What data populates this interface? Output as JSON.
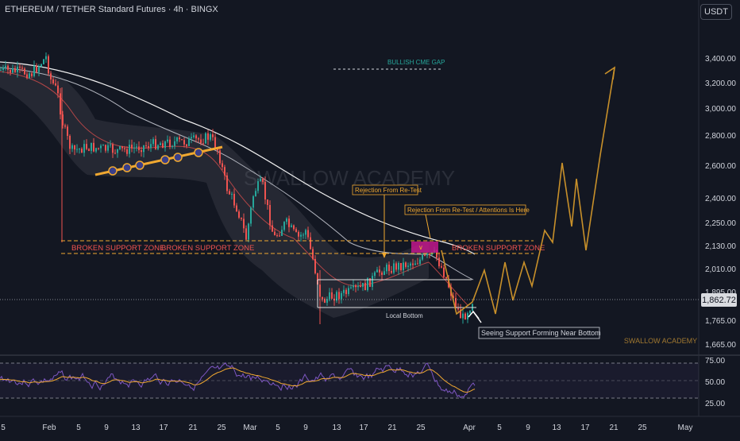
{
  "header": {
    "symbol_title": "ETHEREUM / TETHER Standard Futures · 4h · BINGX"
  },
  "currency_button": "USDT",
  "last_price": "1,862.72",
  "watermark_center": "SWALLOW ACADEMY",
  "watermark_corner": "SWALLOW ACADEMY",
  "price_axis_labels": [
    "3,400.00",
    "3,200.00",
    "3,000.00",
    "2,800.00",
    "2,600.00",
    "2,400.00",
    "2,250.00",
    "2,130.00",
    "2,010.00",
    "1,895.00",
    "1,765.00",
    "1,665.00"
  ],
  "rsi_axis_labels": [
    "75.00",
    "50.00",
    "25.00"
  ],
  "time_axis_labels": [
    "5",
    "Feb",
    "5",
    "9",
    "13",
    "17",
    "21",
    "25",
    "Mar",
    "5",
    "9",
    "13",
    "17",
    "21",
    "25",
    "Apr",
    "5",
    "9",
    "13",
    "17",
    "21",
    "25",
    "May"
  ],
  "annotations": {
    "bullish_cme_gap": "BULLISH CME GAP",
    "broken_support_1": "BROKEN SUPPORT ZONE",
    "broken_support_2": "BROKEN SUPPORT ZONE",
    "broken_support_3": "BROKEN SUPPORT ZONE",
    "rejection_retest": "Rejection From Re-Test",
    "rejection_retest_attention": "Rejection From Re-Test / Attentions Is Here",
    "local_bottom": "Local Bottom",
    "support_forming": "Seeing Support Forming Near Bottom"
  },
  "colors": {
    "background": "#131722",
    "up": "#26a69a",
    "down": "#ef5350",
    "projection": "#c8902a",
    "support_zone": "#ef5350",
    "rsi": "#7e57c2",
    "rsi_ma": "#f0a830",
    "cme": "#26a69a"
  }
}
